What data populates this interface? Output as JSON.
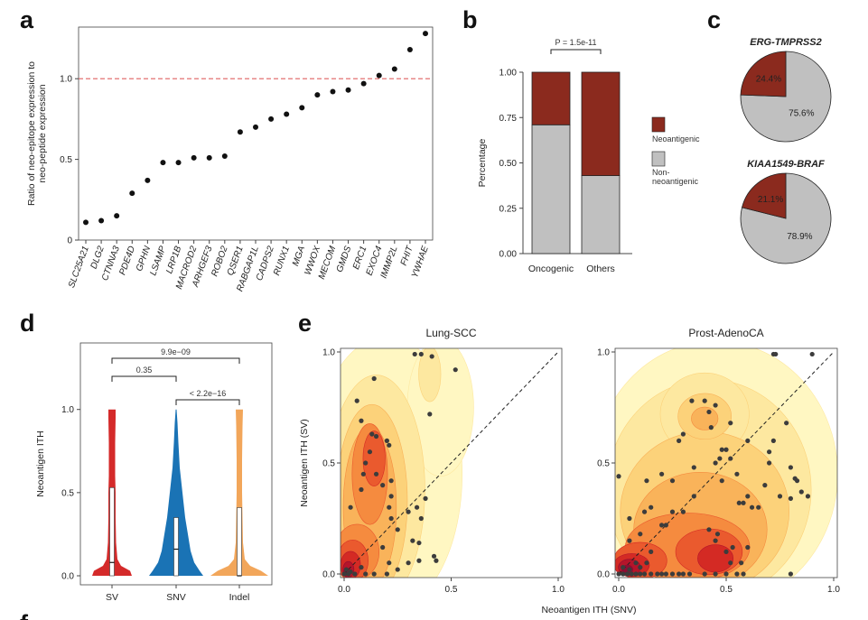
{
  "panels": {
    "a": "a",
    "b": "b",
    "c": "c",
    "d": "d",
    "e": "e",
    "f": "f"
  },
  "colors": {
    "neoantigenic": "#8b2a1e",
    "non_neoantigenic": "#c0c0c0",
    "sv": "#d42a2a",
    "snv": "#1a73b5",
    "indel": "#f2a65a",
    "threshold": "#e06060"
  },
  "chart_data": [
    {
      "panel": "a",
      "type": "scatter",
      "ylabel": "Ratio of neo-epitope expression to\nneo-peptide expression",
      "ylim": [
        0,
        1.32
      ],
      "yticks": [
        "0",
        "0.5",
        "1.0"
      ],
      "reference_line": 1.0,
      "categories": [
        "SLC25A21",
        "DLG2",
        "CTNNA3",
        "PDE4D",
        "GPHN",
        "LSAMP",
        "LRP1B",
        "MACROD2",
        "ARHGEF3",
        "ROBO2",
        "QSER1",
        "RABGAP1L",
        "CADPS2",
        "RUNX1",
        "MGA",
        "WWOX",
        "MECOM",
        "GMDS",
        "ERC1",
        "EXOC4",
        "IMMP2L",
        "FHIT",
        "YWHAE"
      ],
      "values": [
        0.11,
        0.12,
        0.15,
        0.29,
        0.37,
        0.48,
        0.48,
        0.51,
        0.51,
        0.52,
        0.67,
        0.7,
        0.75,
        0.78,
        0.82,
        0.9,
        0.92,
        0.93,
        0.97,
        1.02,
        1.06,
        1.18,
        1.28
      ]
    },
    {
      "panel": "b",
      "type": "bar",
      "stacked": true,
      "ylabel": "Percentage",
      "ylim": [
        0,
        1
      ],
      "yticks": [
        "0.00",
        "0.25",
        "0.50",
        "0.75",
        "1.00"
      ],
      "categories": [
        "Oncogenic",
        "Others"
      ],
      "series": [
        {
          "name": "Non-\nneoantigenic",
          "values": [
            0.71,
            0.43
          ]
        },
        {
          "name": "Neoantigenic",
          "values": [
            0.29,
            0.57
          ]
        }
      ],
      "annotation": "P = 1.5e-11"
    },
    {
      "panel": "c",
      "type": "pie",
      "charts": [
        {
          "title": "ERG-TMPRSS2",
          "slices": [
            {
              "name": "Neoantigenic",
              "value": 24.4,
              "label": "24.4%"
            },
            {
              "name": "Non-neoantigenic",
              "value": 75.6,
              "label": "75.6%"
            }
          ]
        },
        {
          "title": "KIAA1549-BRAF",
          "slices": [
            {
              "name": "Neoantigenic",
              "value": 21.1,
              "label": "21.1%"
            },
            {
              "name": "Non-neoantigenic",
              "value": 78.9,
              "label": "78.9%"
            }
          ]
        }
      ]
    },
    {
      "panel": "d",
      "type": "violin",
      "ylabel": "Neoantigen ITH",
      "ylim": [
        0,
        1.4
      ],
      "yticks": [
        "0.0",
        "0.5",
        "1.0"
      ],
      "categories": [
        "SV",
        "SNV",
        "Indel"
      ],
      "box": [
        {
          "q1": 0.0,
          "median": 0.08,
          "q3": 0.53
        },
        {
          "q1": 0.0,
          "median": 0.16,
          "q3": 0.35
        },
        {
          "q1": 0.0,
          "median": 0.0,
          "q3": 0.41
        }
      ],
      "comparisons": [
        {
          "pair": [
            "SV",
            "SNV"
          ],
          "p": "0.35"
        },
        {
          "pair": [
            "SNV",
            "Indel"
          ],
          "p": "< 2.2e−16"
        },
        {
          "pair": [
            "SV",
            "Indel"
          ],
          "p": "9.9e−09"
        }
      ]
    },
    {
      "panel": "e",
      "type": "scatter",
      "xlabel": "Neoantigen ITH (SNV)",
      "ylabel": "Neoantigen ITH (SV)",
      "xlim": [
        0,
        1
      ],
      "ylim": [
        0,
        1
      ],
      "xticks": [
        "0.0",
        "0.5",
        "1.0"
      ],
      "yticks": [
        "0.0",
        "0.5",
        "1.0"
      ],
      "plots": [
        {
          "title": "Lung-SCC",
          "points": [
            [
              0.0,
              0.0
            ],
            [
              0.01,
              0.02
            ],
            [
              0.02,
              0.0
            ],
            [
              0.03,
              0.01
            ],
            [
              0.05,
              0.0
            ],
            [
              0.08,
              0.03
            ],
            [
              0.1,
              0.0
            ],
            [
              0.14,
              0.0
            ],
            [
              0.2,
              0.0
            ],
            [
              0.21,
              0.05
            ],
            [
              0.25,
              0.02
            ],
            [
              0.22,
              0.25
            ],
            [
              0.03,
              0.3
            ],
            [
              0.1,
              0.5
            ],
            [
              0.12,
              0.55
            ],
            [
              0.13,
              0.63
            ],
            [
              0.15,
              0.62
            ],
            [
              0.2,
              0.6
            ],
            [
              0.21,
              0.58
            ],
            [
              0.09,
              0.45
            ],
            [
              0.15,
              0.45
            ],
            [
              0.22,
              0.42
            ],
            [
              0.18,
              0.4
            ],
            [
              0.22,
              0.35
            ],
            [
              0.08,
              0.38
            ],
            [
              0.21,
              0.3
            ],
            [
              0.25,
              0.2
            ],
            [
              0.3,
              0.28
            ],
            [
              0.34,
              0.3
            ],
            [
              0.36,
              0.25
            ],
            [
              0.38,
              0.34
            ],
            [
              0.4,
              0.72
            ],
            [
              0.33,
              0.99
            ],
            [
              0.36,
              0.99
            ],
            [
              0.41,
              0.98
            ],
            [
              0.52,
              0.92
            ],
            [
              0.35,
              0.06
            ],
            [
              0.43,
              0.06
            ],
            [
              0.42,
              0.08
            ],
            [
              0.06,
              0.78
            ],
            [
              0.14,
              0.88
            ],
            [
              0.08,
              0.69
            ],
            [
              0.32,
              0.15
            ],
            [
              0.3,
              0.05
            ],
            [
              0.18,
              0.12
            ],
            [
              0.35,
              0.14
            ]
          ]
        },
        {
          "title": "Prost-AdenoCA",
          "points": [
            [
              0.0,
              0.0
            ],
            [
              0.02,
              0.0
            ],
            [
              0.04,
              0.0
            ],
            [
              0.06,
              0.0
            ],
            [
              0.08,
              0.0
            ],
            [
              0.1,
              0.0
            ],
            [
              0.12,
              0.0
            ],
            [
              0.15,
              0.0
            ],
            [
              0.18,
              0.0
            ],
            [
              0.2,
              0.0
            ],
            [
              0.22,
              0.0
            ],
            [
              0.25,
              0.0
            ],
            [
              0.28,
              0.0
            ],
            [
              0.3,
              0.0
            ],
            [
              0.33,
              0.0
            ],
            [
              0.4,
              0.0
            ],
            [
              0.45,
              0.0
            ],
            [
              0.5,
              0.0
            ],
            [
              0.55,
              0.0
            ],
            [
              0.58,
              0.0
            ],
            [
              0.8,
              0.0
            ],
            [
              0.02,
              0.03
            ],
            [
              0.05,
              0.02
            ],
            [
              0.08,
              0.05
            ],
            [
              0.1,
              0.03
            ],
            [
              0.13,
              0.05
            ],
            [
              0.15,
              0.1
            ],
            [
              0.05,
              0.15
            ],
            [
              0.1,
              0.18
            ],
            [
              0.05,
              0.25
            ],
            [
              0.12,
              0.28
            ],
            [
              0.15,
              0.3
            ],
            [
              0.2,
              0.22
            ],
            [
              0.25,
              0.28
            ],
            [
              0.3,
              0.28
            ],
            [
              0.35,
              0.35
            ],
            [
              0.2,
              0.45
            ],
            [
              0.25,
              0.42
            ],
            [
              0.13,
              0.42
            ],
            [
              0.0,
              0.44
            ],
            [
              0.28,
              0.6
            ],
            [
              0.3,
              0.63
            ],
            [
              0.34,
              0.78
            ],
            [
              0.4,
              0.78
            ],
            [
              0.42,
              0.73
            ],
            [
              0.45,
              0.76
            ],
            [
              0.43,
              0.66
            ],
            [
              0.45,
              0.5
            ],
            [
              0.47,
              0.52
            ],
            [
              0.48,
              0.56
            ],
            [
              0.5,
              0.56
            ],
            [
              0.52,
              0.52
            ],
            [
              0.55,
              0.45
            ],
            [
              0.56,
              0.32
            ],
            [
              0.58,
              0.32
            ],
            [
              0.6,
              0.35
            ],
            [
              0.62,
              0.3
            ],
            [
              0.45,
              0.15
            ],
            [
              0.42,
              0.2
            ],
            [
              0.46,
              0.18
            ],
            [
              0.5,
              0.1
            ],
            [
              0.53,
              0.12
            ],
            [
              0.52,
              0.05
            ],
            [
              0.57,
              0.05
            ],
            [
              0.6,
              0.12
            ],
            [
              0.65,
              0.3
            ],
            [
              0.68,
              0.4
            ],
            [
              0.7,
              0.55
            ],
            [
              0.72,
              0.6
            ],
            [
              0.78,
              0.68
            ],
            [
              0.8,
              0.48
            ],
            [
              0.82,
              0.43
            ],
            [
              0.83,
              0.42
            ],
            [
              0.85,
              0.37
            ],
            [
              0.8,
              0.34
            ],
            [
              0.88,
              0.35
            ],
            [
              0.6,
              0.6
            ],
            [
              0.52,
              0.68
            ],
            [
              0.72,
              0.99
            ],
            [
              0.73,
              0.99
            ],
            [
              0.9,
              0.99
            ],
            [
              0.7,
              0.5
            ],
            [
              0.22,
              0.22
            ],
            [
              0.35,
              0.48
            ],
            [
              0.48,
              0.42
            ],
            [
              0.75,
              0.35
            ]
          ]
        }
      ]
    }
  ]
}
